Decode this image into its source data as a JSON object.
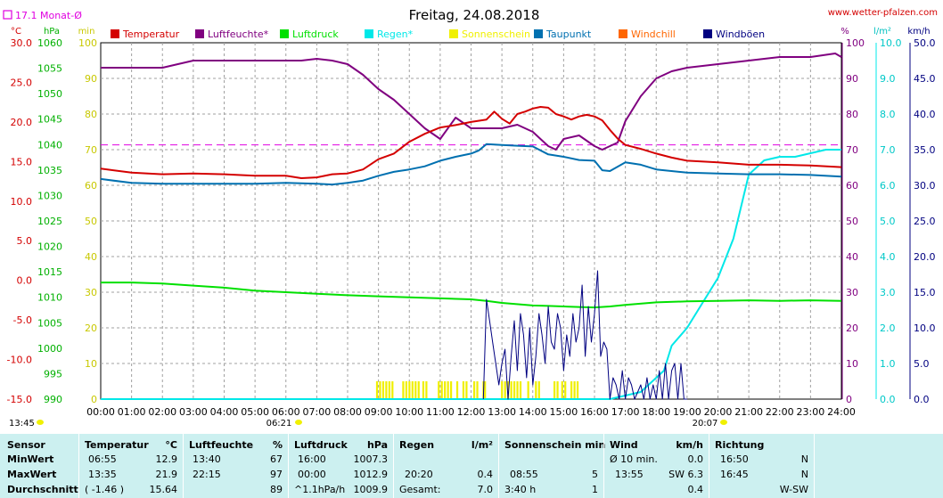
{
  "title": "Freitag, 24.08.2018",
  "site": "www.wetter-pfalzen.com",
  "month_avg_label": "17.1 Monat-Ø",
  "axis_units": {
    "temp": "°C",
    "pressure": "hPa",
    "minutes": "min",
    "percent": "%",
    "rain": "l/m²",
    "wind": "km/h"
  },
  "sunrise": "06:21",
  "sunset": "20:07",
  "corner_time": "13:45",
  "legend": [
    {
      "name": "Temperatur",
      "color": "#d40000"
    },
    {
      "name": "Luftfeuchte*",
      "color": "#800080"
    },
    {
      "name": "Luftdruck",
      "color": "#00e000"
    },
    {
      "name": "Regen*",
      "color": "#00e8e8"
    },
    {
      "name": "Sonnenschein",
      "color": "#f0f000"
    },
    {
      "name": "Taupunkt",
      "color": "#0070b0"
    },
    {
      "name": "Windchill",
      "color": "#ff6600"
    },
    {
      "name": "Windböen",
      "color": "#000080"
    }
  ],
  "chart_data": {
    "type": "line",
    "x_ticks": [
      "00:00",
      "01:00",
      "02:00",
      "03:00",
      "04:00",
      "05:00",
      "06:00",
      "07:00",
      "08:00",
      "09:00",
      "10:00",
      "11:00",
      "12:00",
      "13:00",
      "14:00",
      "15:00",
      "16:00",
      "17:00",
      "18:00",
      "19:00",
      "20:00",
      "21:00",
      "22:00",
      "23:00",
      "24:00"
    ],
    "axes": {
      "temp": {
        "unit": "°C",
        "ticks": [
          "30.0",
          "25.0",
          "20.0",
          "15.0",
          "10.0",
          "5.0",
          "0.0",
          "-5.0",
          "-10.0",
          "-15.0"
        ],
        "range": [
          -15,
          30
        ]
      },
      "pressure": {
        "unit": "hPa",
        "ticks": [
          "1060",
          "1055",
          "1050",
          "1045",
          "1040",
          "1035",
          "1030",
          "1025",
          "1020",
          "1015",
          "1010",
          "1005",
          "1000",
          "995",
          "990"
        ],
        "range": [
          990,
          1060
        ]
      },
      "minutes": {
        "unit": "min",
        "ticks": [
          "100",
          "90",
          "80",
          "70",
          "60",
          "50",
          "40",
          "30",
          "20",
          "10",
          "0"
        ],
        "range": [
          0,
          100
        ]
      },
      "percent": {
        "unit": "%",
        "ticks": [
          "100",
          "90",
          "80",
          "70",
          "60",
          "50",
          "40",
          "30",
          "20",
          "10",
          "0"
        ],
        "range": [
          0,
          100
        ]
      },
      "rain": {
        "unit": "l/m²",
        "ticks": [
          "10.0",
          "9.0",
          "8.0",
          "7.0",
          "6.0",
          "5.0",
          "4.0",
          "3.0",
          "2.0",
          "1.0",
          "0.0"
        ],
        "range": [
          0,
          10
        ]
      },
      "wind": {
        "unit": "km/h",
        "ticks": [
          "50.0",
          "45.0",
          "40.0",
          "35.0",
          "30.0",
          "25.0",
          "20.0",
          "15.0",
          "10.0",
          "5.0",
          "0.0"
        ],
        "range": [
          0,
          50
        ]
      }
    },
    "monthly_avg_temp": 17.1,
    "series": [
      {
        "name": "Temperatur",
        "axis": "temp",
        "x": [
          0,
          1,
          2,
          3,
          4,
          5,
          6,
          6.5,
          7,
          7.5,
          8,
          8.5,
          9,
          9.5,
          10,
          10.5,
          11,
          11.5,
          12,
          12.5,
          12.75,
          13,
          13.25,
          13.5,
          13.75,
          14,
          14.25,
          14.5,
          14.75,
          15,
          15.25,
          15.5,
          15.75,
          16,
          16.25,
          16.5,
          16.75,
          17,
          17.5,
          18,
          18.5,
          19,
          20,
          21,
          22,
          23,
          24
        ],
        "y": [
          14.1,
          13.6,
          13.4,
          13.5,
          13.4,
          13.2,
          13.2,
          12.9,
          13.0,
          13.4,
          13.5,
          14.0,
          15.3,
          16.0,
          17.5,
          18.5,
          19.3,
          19.6,
          20.0,
          20.3,
          21.3,
          20.4,
          19.8,
          21.0,
          21.3,
          21.7,
          21.9,
          21.8,
          21.0,
          20.7,
          20.3,
          20.7,
          20.9,
          20.7,
          20.2,
          19.0,
          17.9,
          17.1,
          16.6,
          16.0,
          15.5,
          15.1,
          14.9,
          14.6,
          14.6,
          14.5,
          14.3
        ]
      },
      {
        "name": "Luftfeuchte*",
        "axis": "percent",
        "x": [
          0,
          1,
          2,
          2.5,
          3,
          4,
          5,
          6,
          6.5,
          7,
          7.5,
          8,
          8.5,
          9,
          9.5,
          10,
          10.5,
          11,
          11.5,
          12,
          12.5,
          13,
          13.5,
          14,
          14.25,
          14.5,
          14.75,
          15,
          15.5,
          16,
          16.25,
          16.5,
          16.75,
          17,
          17.5,
          18,
          18.5,
          19,
          20,
          21,
          22,
          23,
          23.8,
          24
        ],
        "y": [
          93,
          93,
          93,
          94,
          95,
          95,
          95,
          95,
          95,
          95.5,
          95,
          94,
          91,
          87,
          84,
          80,
          76,
          73,
          79,
          76,
          76,
          76,
          77,
          75,
          73,
          71,
          70,
          73,
          74,
          71,
          70,
          71,
          72,
          78,
          85,
          90,
          92,
          93,
          94,
          95,
          96,
          96,
          97,
          96
        ]
      },
      {
        "name": "Luftdruck",
        "axis": "pressure",
        "x": [
          0,
          1,
          2,
          3,
          4,
          5,
          6,
          7,
          8,
          9,
          10,
          11,
          12,
          12.5,
          13,
          14,
          14.5,
          15,
          15.5,
          16,
          16.5,
          17,
          18,
          19,
          20,
          21,
          22,
          23,
          24
        ],
        "y": [
          1012.9,
          1012.9,
          1012.7,
          1012.3,
          1011.9,
          1011.3,
          1011.0,
          1010.7,
          1010.4,
          1010.2,
          1010.0,
          1009.8,
          1009.6,
          1009.3,
          1008.9,
          1008.4,
          1008.3,
          1008.2,
          1008.1,
          1008.0,
          1008.2,
          1008.5,
          1009.0,
          1009.2,
          1009.3,
          1009.4,
          1009.3,
          1009.4,
          1009.3
        ]
      },
      {
        "name": "Regen*",
        "axis": "rain",
        "x": [
          0,
          16.5,
          17,
          17.5,
          18,
          18.25,
          18.5,
          19,
          19.5,
          20,
          20.5,
          21,
          21.5,
          22,
          22.5,
          23,
          23.5,
          24
        ],
        "y": [
          0,
          0,
          0.1,
          0.2,
          0.6,
          0.8,
          1.5,
          2.0,
          2.7,
          3.4,
          4.5,
          6.3,
          6.7,
          6.8,
          6.8,
          6.9,
          7.0,
          7.0
        ]
      },
      {
        "name": "Taupunkt",
        "axis": "temp",
        "x": [
          0,
          1,
          2,
          3,
          4,
          5,
          6,
          7,
          7.5,
          8,
          8.5,
          9,
          9.5,
          10,
          10.5,
          11,
          11.5,
          12,
          12.25,
          12.5,
          13,
          13.5,
          14,
          14.5,
          15,
          15.5,
          16,
          16.25,
          16.5,
          17,
          17.5,
          18,
          19,
          20,
          21,
          22,
          23,
          24
        ],
        "y": [
          12.8,
          12.3,
          12.2,
          12.2,
          12.2,
          12.2,
          12.3,
          12.2,
          12.1,
          12.3,
          12.6,
          13.2,
          13.7,
          14.0,
          14.4,
          15.1,
          15.6,
          16.0,
          16.4,
          17.2,
          17.1,
          17.0,
          16.9,
          15.9,
          15.6,
          15.2,
          15.1,
          13.9,
          13.8,
          14.9,
          14.6,
          14.0,
          13.6,
          13.5,
          13.4,
          13.4,
          13.3,
          13.1
        ]
      },
      {
        "name": "Windböen",
        "axis": "wind",
        "x": [
          12.4,
          12.5,
          12.6,
          12.7,
          12.8,
          12.9,
          13.0,
          13.1,
          13.2,
          13.3,
          13.4,
          13.5,
          13.6,
          13.7,
          13.8,
          13.9,
          14.0,
          14.1,
          14.2,
          14.3,
          14.4,
          14.5,
          14.6,
          14.7,
          14.8,
          14.9,
          15.0,
          15.1,
          15.2,
          15.3,
          15.4,
          15.5,
          15.6,
          15.7,
          15.8,
          15.9,
          16.0,
          16.1,
          16.2,
          16.3,
          16.4,
          16.5,
          16.6,
          16.7,
          16.8,
          16.9,
          17.0,
          17.1,
          17.2,
          17.3,
          17.4,
          17.5,
          17.6,
          17.7,
          17.8,
          17.9,
          18.0,
          18.1,
          18.2,
          18.3,
          18.4,
          18.5,
          18.6,
          18.7,
          18.8,
          18.9,
          19.0
        ],
        "y": [
          0,
          14,
          11,
          8,
          5,
          2,
          5,
          7,
          0,
          6,
          11,
          4,
          12,
          9,
          3,
          10,
          2,
          6,
          12,
          9,
          5,
          13,
          8,
          7,
          12,
          10,
          4,
          9,
          6,
          12,
          8,
          10,
          16,
          6,
          13,
          8,
          12,
          18,
          6,
          8,
          7,
          0,
          3,
          2,
          0,
          4,
          0,
          3,
          2,
          0,
          1,
          2,
          0,
          3,
          0,
          2,
          0,
          4,
          0,
          5,
          0,
          4,
          5,
          0,
          5,
          0,
          0
        ]
      },
      {
        "name": "Sonnenschein",
        "axis": "minutes",
        "bars_at": [
          8.95,
          9.05,
          9.15,
          9.25,
          9.35,
          9.45,
          9.8,
          9.9,
          10.0,
          10.1,
          10.2,
          10.3,
          10.45,
          10.55,
          10.95,
          11.05,
          11.15,
          11.25,
          11.35,
          11.55,
          11.75,
          11.85,
          12.1,
          12.2,
          12.4,
          12.45,
          13.0,
          13.1,
          13.2,
          13.3,
          13.4,
          13.5,
          13.6,
          13.85,
          14.1,
          14.2,
          14.7,
          14.8,
          14.95,
          15.05,
          15.25,
          15.35,
          15.45
        ],
        "value": 5
      }
    ]
  },
  "stats": {
    "sensor": {
      "header": "Sensor",
      "rows": [
        "MinWert",
        "MaxWert",
        "Durchschnitt"
      ]
    },
    "temperature": {
      "header": "Temperatur",
      "unit": "°C",
      "rows": [
        [
          "06:55",
          "12.9"
        ],
        [
          "13:35",
          "21.9"
        ],
        [
          "( -1.46 )",
          "15.64"
        ]
      ]
    },
    "humidity": {
      "header": "Luftfeuchte",
      "unit": "%",
      "rows": [
        [
          "13:40",
          "67"
        ],
        [
          "22:15",
          "97"
        ],
        [
          "",
          "89"
        ]
      ]
    },
    "pressure": {
      "header": "Luftdruck",
      "unit": "hPa",
      "rows": [
        [
          "16:00",
          "1007.3"
        ],
        [
          "00:00",
          "1012.9"
        ],
        [
          "^1.1hPa/h",
          "1009.9"
        ]
      ]
    },
    "rain": {
      "header": "Regen",
      "unit": "l/m²",
      "rows": [
        [
          "",
          ""
        ],
        [
          "20:20",
          "0.4"
        ],
        [
          "Gesamt:",
          "7.0"
        ]
      ]
    },
    "sun": {
      "header": "Sonnenschein min",
      "rows": [
        [
          "",
          ""
        ],
        [
          "08:55",
          "5"
        ],
        [
          "3:40 h",
          "1"
        ]
      ]
    },
    "wind": {
      "header": "Wind",
      "unit": "km/h",
      "rows": [
        [
          "Ø 10 min.",
          "0.0"
        ],
        [
          "13:55",
          "SW 6.3"
        ],
        [
          "",
          "0.4"
        ]
      ]
    },
    "direction": {
      "header": "Richtung",
      "rows": [
        [
          "16:50",
          "N"
        ],
        [
          "16:45",
          "N"
        ],
        [
          "",
          "W-SW"
        ]
      ]
    }
  }
}
